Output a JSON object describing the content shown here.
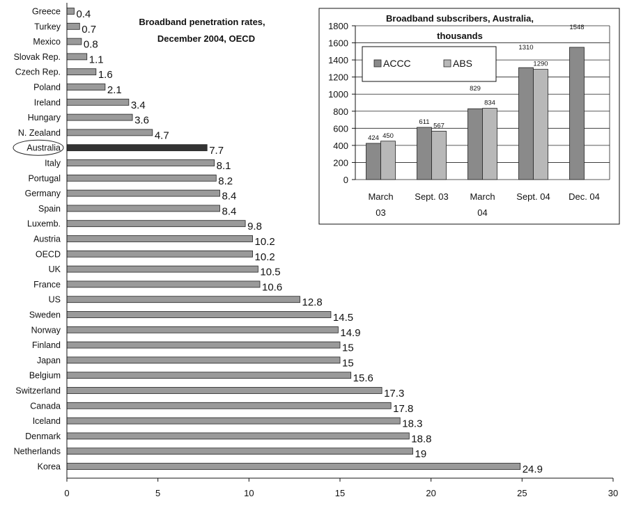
{
  "chart_data": [
    {
      "type": "bar",
      "orientation": "horizontal",
      "title_line1": "Broadband penetration rates,",
      "title_line2": "December 2004, OECD",
      "xlim": [
        0,
        30
      ],
      "xticks": [
        "0",
        "5",
        "10",
        "15",
        "20",
        "25",
        "30"
      ],
      "categories": [
        "Greece",
        "Turkey",
        "Mexico",
        "Slovak Rep.",
        "Czech Rep.",
        "Poland",
        "Ireland",
        "Hungary",
        "N. Zealand",
        "Australia",
        "Italy",
        "Portugal",
        "Germany",
        "Spain",
        "Luxemb.",
        "Austria",
        "OECD",
        "UK",
        "France",
        "US",
        "Sweden",
        "Norway",
        "Finland",
        "Japan",
        "Belgium",
        "Switzerland",
        "Canada",
        "Iceland",
        "Denmark",
        "Netherlands",
        "Korea"
      ],
      "values": [
        0.4,
        0.7,
        0.8,
        1.1,
        1.6,
        2.1,
        3.4,
        3.6,
        4.7,
        7.7,
        8.1,
        8.2,
        8.4,
        8.4,
        9.8,
        10.2,
        10.2,
        10.5,
        10.6,
        12.8,
        14.5,
        14.9,
        15,
        15,
        15.6,
        17.3,
        17.8,
        18.3,
        18.8,
        19,
        24.9
      ],
      "value_labels": [
        "0.4",
        "0.7",
        "0.8",
        "1.1",
        "1.6",
        "2.1",
        "3.4",
        "3.6",
        "4.7",
        "7.7",
        "8.1",
        "8.2",
        "8.4",
        "8.4",
        "9.8",
        "10.2",
        "10.2",
        "10.5",
        "10.6",
        "12.8",
        "14.5",
        "14.9",
        "15",
        "15",
        "15.6",
        "17.3",
        "17.8",
        "18.3",
        "18.8",
        "19",
        "24.9"
      ],
      "highlight": "Australia",
      "colors": {
        "bar": "#9a9a9a",
        "highlight": "#333333"
      },
      "grid": false
    },
    {
      "type": "bar",
      "title_line1": "Broadband subscribers, Australia,",
      "title_line2": "thousands",
      "ylim": [
        0,
        1800
      ],
      "yticks": [
        "0",
        "200",
        "400",
        "600",
        "800",
        "1000",
        "1200",
        "1400",
        "1600",
        "1800"
      ],
      "categories": [
        [
          "March",
          "03"
        ],
        [
          "Sept. 03",
          ""
        ],
        [
          "March",
          "04"
        ],
        [
          "Sept. 04",
          ""
        ],
        [
          "Dec. 04",
          ""
        ]
      ],
      "series": [
        {
          "name": "ACCC",
          "values": [
            424,
            611,
            829,
            1310,
            1548
          ],
          "labels": [
            "424",
            "611",
            "829",
            "1310",
            "1548"
          ],
          "color": "#8a8a8a"
        },
        {
          "name": "ABS",
          "values": [
            450,
            567,
            834,
            1290,
            null
          ],
          "labels": [
            "450",
            "567",
            "834",
            "1290",
            ""
          ],
          "color": "#b8b8b8"
        }
      ],
      "legend": "top-left",
      "grid": true
    }
  ]
}
